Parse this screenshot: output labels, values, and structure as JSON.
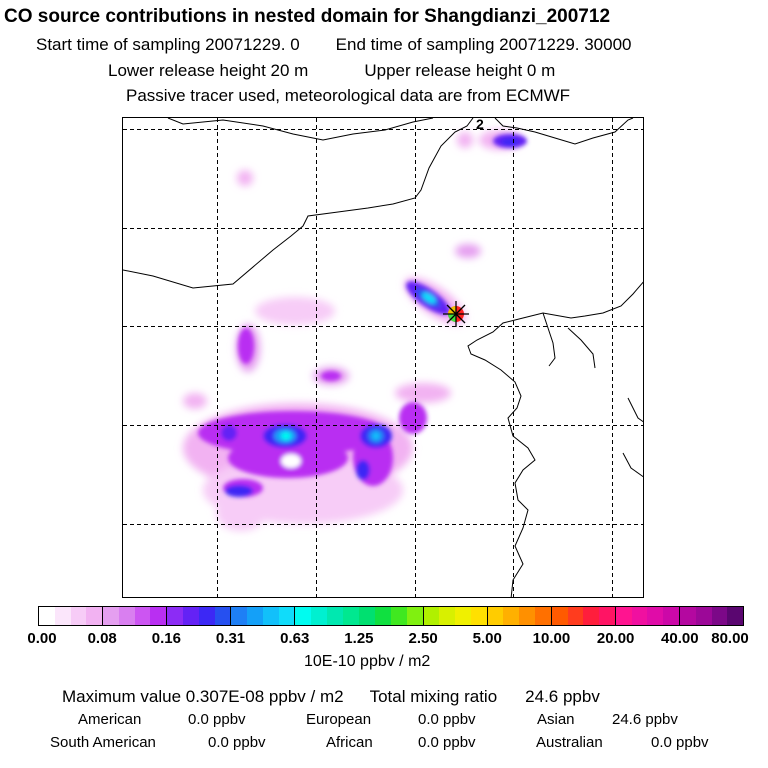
{
  "header": {
    "title": "CO  source contributions in nested domain for Shangdianzi_200712",
    "start_label": "Start time of sampling 20071229.    0",
    "end_label": "End time of sampling 20071229. 30000",
    "lower_label": "Lower release height   20 m",
    "upper_label": "Upper release height    0 m",
    "tracer_note": "Passive tracer used, meteorological data are from ECMWF"
  },
  "map": {
    "contour_label": "2",
    "receptor": "Shangdianzi"
  },
  "colorbar": {
    "ticks": [
      "0.00",
      "0.08",
      "0.16",
      "0.31",
      "0.63",
      "1.25",
      "2.50",
      "5.00",
      "10.00",
      "20.00",
      "40.00",
      "80.00"
    ],
    "unit": "10E-10 ppbv / m2",
    "segments": [
      [
        "#ffffff",
        "#fbe6fb",
        "#f7ccf7",
        "#f2b2f2",
        "#ecfcff"
      ],
      [
        "#e59ff0",
        "#d97ff0",
        "#cc55f2",
        "#b92ff2",
        "#ffffff"
      ],
      [
        "#8c2cf5",
        "#6422f5",
        "#3c28f5",
        "#2650f0",
        "#ffffff"
      ],
      [
        "#1e7ff5",
        "#14a0f8",
        "#12c0fa",
        "#10dcfa",
        "#ffffff"
      ],
      [
        "#00fcf0",
        "#00f0d0",
        "#00e8b0",
        "#00e890",
        "#ffffff"
      ],
      [
        "#00e070",
        "#10e040",
        "#40e820",
        "#80f010",
        "#ffffff"
      ],
      [
        "#b0f000",
        "#d8f000",
        "#f0f000",
        "#ffe000",
        "#ffffff"
      ],
      [
        "#ffcc00",
        "#ffb000",
        "#ff9000",
        "#ff7000",
        "#ffffff"
      ],
      [
        "#ff5a00",
        "#ff3c1e",
        "#ff1e3c",
        "#ff1464",
        "#ffffff"
      ],
      [
        "#ff1490",
        "#f010a0",
        "#e00ca8",
        "#cc08a8",
        "#ffffff"
      ],
      [
        "#b408a0",
        "#9c0898",
        "#7c0888",
        "#5a0670",
        "#ffffff"
      ]
    ]
  },
  "summary": {
    "max_label": "Maximum value  0.307E-08 ppbv / m2",
    "total_label": "Total mixing ratio",
    "total_value": "24.6 ppbv",
    "regions": [
      {
        "name": "American",
        "value": "0.0 ppbv"
      },
      {
        "name": "European",
        "value": "0.0 ppbv"
      },
      {
        "name": "Asian",
        "value": "24.6 ppbv"
      },
      {
        "name": "South American",
        "value": "0.0 ppbv"
      },
      {
        "name": "African",
        "value": "0.0 ppbv"
      },
      {
        "name": "Australian",
        "value": "0.0 ppbv"
      }
    ]
  }
}
